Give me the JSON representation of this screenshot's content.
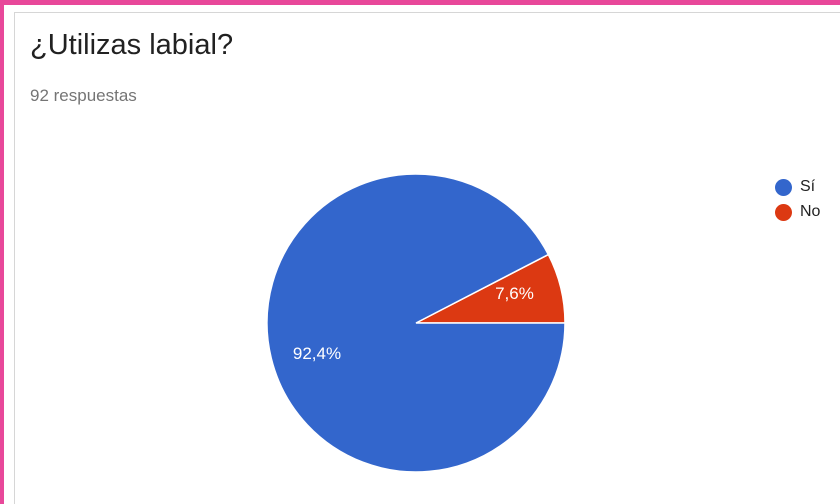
{
  "title": "¿Utilizas labial?",
  "subtitle": "92 respuestas",
  "chart_data": {
    "type": "pie",
    "title": "¿Utilizas labial?",
    "slices": [
      {
        "name": "Sí",
        "value": 92.4,
        "label": "92,4%",
        "color": "#3366cc"
      },
      {
        "name": "No",
        "value": 7.6,
        "label": "7,6%",
        "color": "#dc3912"
      }
    ],
    "legend_position": "right"
  }
}
